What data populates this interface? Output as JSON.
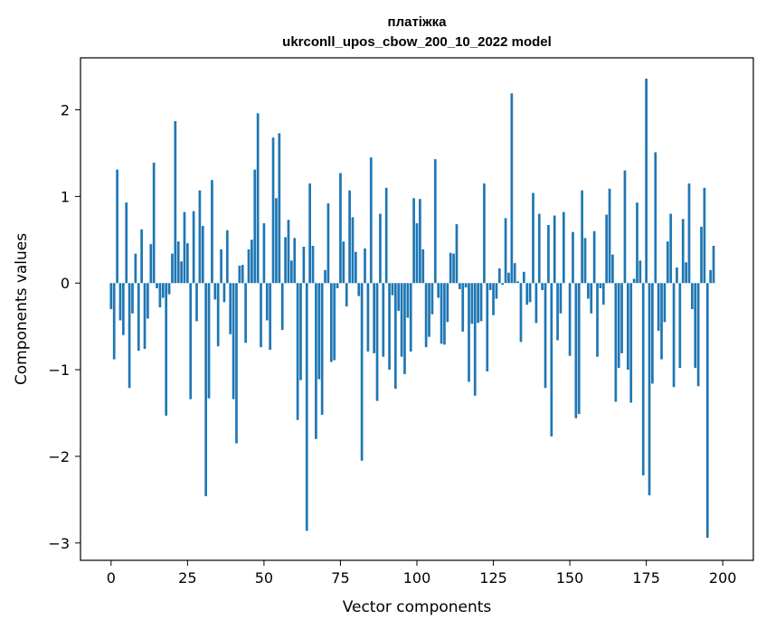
{
  "chart_data": {
    "type": "bar",
    "title": [
      "платіжка",
      "ukrconll_upos_cbow_200_10_2022 model"
    ],
    "xlabel": "Vector components",
    "ylabel": "Components values",
    "xlim": [
      -10,
      210
    ],
    "ylim": [
      -3.2,
      2.6
    ],
    "xticks": [
      0,
      25,
      50,
      75,
      100,
      125,
      150,
      175,
      200
    ],
    "xtick_labels": [
      "0",
      "25",
      "50",
      "75",
      "100",
      "125",
      "150",
      "175",
      "200"
    ],
    "yticks": [
      -3,
      -2,
      -1,
      0,
      1,
      2
    ],
    "ytick_labels": [
      "−3",
      "−2",
      "−1",
      "0",
      "1",
      "2"
    ],
    "series": [
      {
        "name": "components",
        "x_start": 0,
        "values": [
          -0.3,
          -0.88,
          1.31,
          -0.43,
          -0.6,
          0.93,
          -1.21,
          -0.35,
          0.34,
          -0.78,
          0.62,
          -0.76,
          -0.41,
          0.45,
          1.39,
          -0.06,
          -0.28,
          -0.17,
          -1.53,
          -0.13,
          0.34,
          1.87,
          0.48,
          0.25,
          0.82,
          0.46,
          -1.34,
          0.83,
          -0.44,
          1.07,
          0.66,
          -2.46,
          -1.33,
          1.19,
          -0.19,
          -0.73,
          0.39,
          -0.22,
          0.61,
          -0.59,
          -1.34,
          -1.85,
          0.2,
          0.21,
          -0.69,
          0.39,
          0.5,
          1.31,
          1.96,
          -0.74,
          0.69,
          -0.43,
          -0.77,
          1.68,
          0.98,
          1.73,
          -0.54,
          0.53,
          0.73,
          0.26,
          0.52,
          -1.58,
          -1.12,
          0.42,
          -2.86,
          1.15,
          0.43,
          -1.8,
          -1.11,
          -1.52,
          0.15,
          0.92,
          -0.91,
          -0.89,
          -0.06,
          1.27,
          0.48,
          -0.27,
          1.07,
          0.76,
          0.36,
          -0.15,
          -2.05,
          0.4,
          -0.79,
          1.45,
          -0.81,
          -1.36,
          0.8,
          -0.85,
          1.1,
          -1.0,
          -0.14,
          -1.22,
          -0.32,
          -0.85,
          -1.05,
          -0.4,
          -0.79,
          0.98,
          0.69,
          0.97,
          0.39,
          -0.74,
          -0.62,
          -0.36,
          1.43,
          -0.17,
          -0.7,
          -0.71,
          -0.45,
          0.35,
          0.34,
          0.68,
          -0.07,
          -0.56,
          -0.05,
          -1.14,
          -0.47,
          -1.3,
          -0.46,
          -0.44,
          1.15,
          -1.02,
          -0.08,
          -0.37,
          -0.18,
          0.17,
          -0.02,
          0.75,
          0.12,
          2.19,
          0.23,
          0.02,
          -0.68,
          0.13,
          -0.25,
          -0.22,
          1.04,
          -0.46,
          0.8,
          -0.08,
          -1.21,
          0.67,
          -1.77,
          0.78,
          -0.66,
          -0.35,
          0.82,
          0.0,
          -0.84,
          0.59,
          -1.56,
          -1.51,
          1.07,
          0.52,
          -0.18,
          -0.35,
          0.6,
          -0.85,
          -0.06,
          -0.25,
          0.79,
          1.09,
          0.33,
          -1.37,
          -0.98,
          -0.81,
          1.3,
          -1.0,
          -1.38,
          0.05,
          0.93,
          0.26,
          -2.22,
          2.36,
          -2.45,
          -1.16,
          1.51,
          -0.55,
          -0.88,
          -0.45,
          0.48,
          0.8,
          -1.2,
          0.18,
          -0.98,
          0.74,
          0.24,
          1.15,
          -0.3,
          -0.98,
          -1.19,
          0.65,
          1.1,
          -2.94,
          0.15,
          0.43
        ]
      }
    ]
  }
}
